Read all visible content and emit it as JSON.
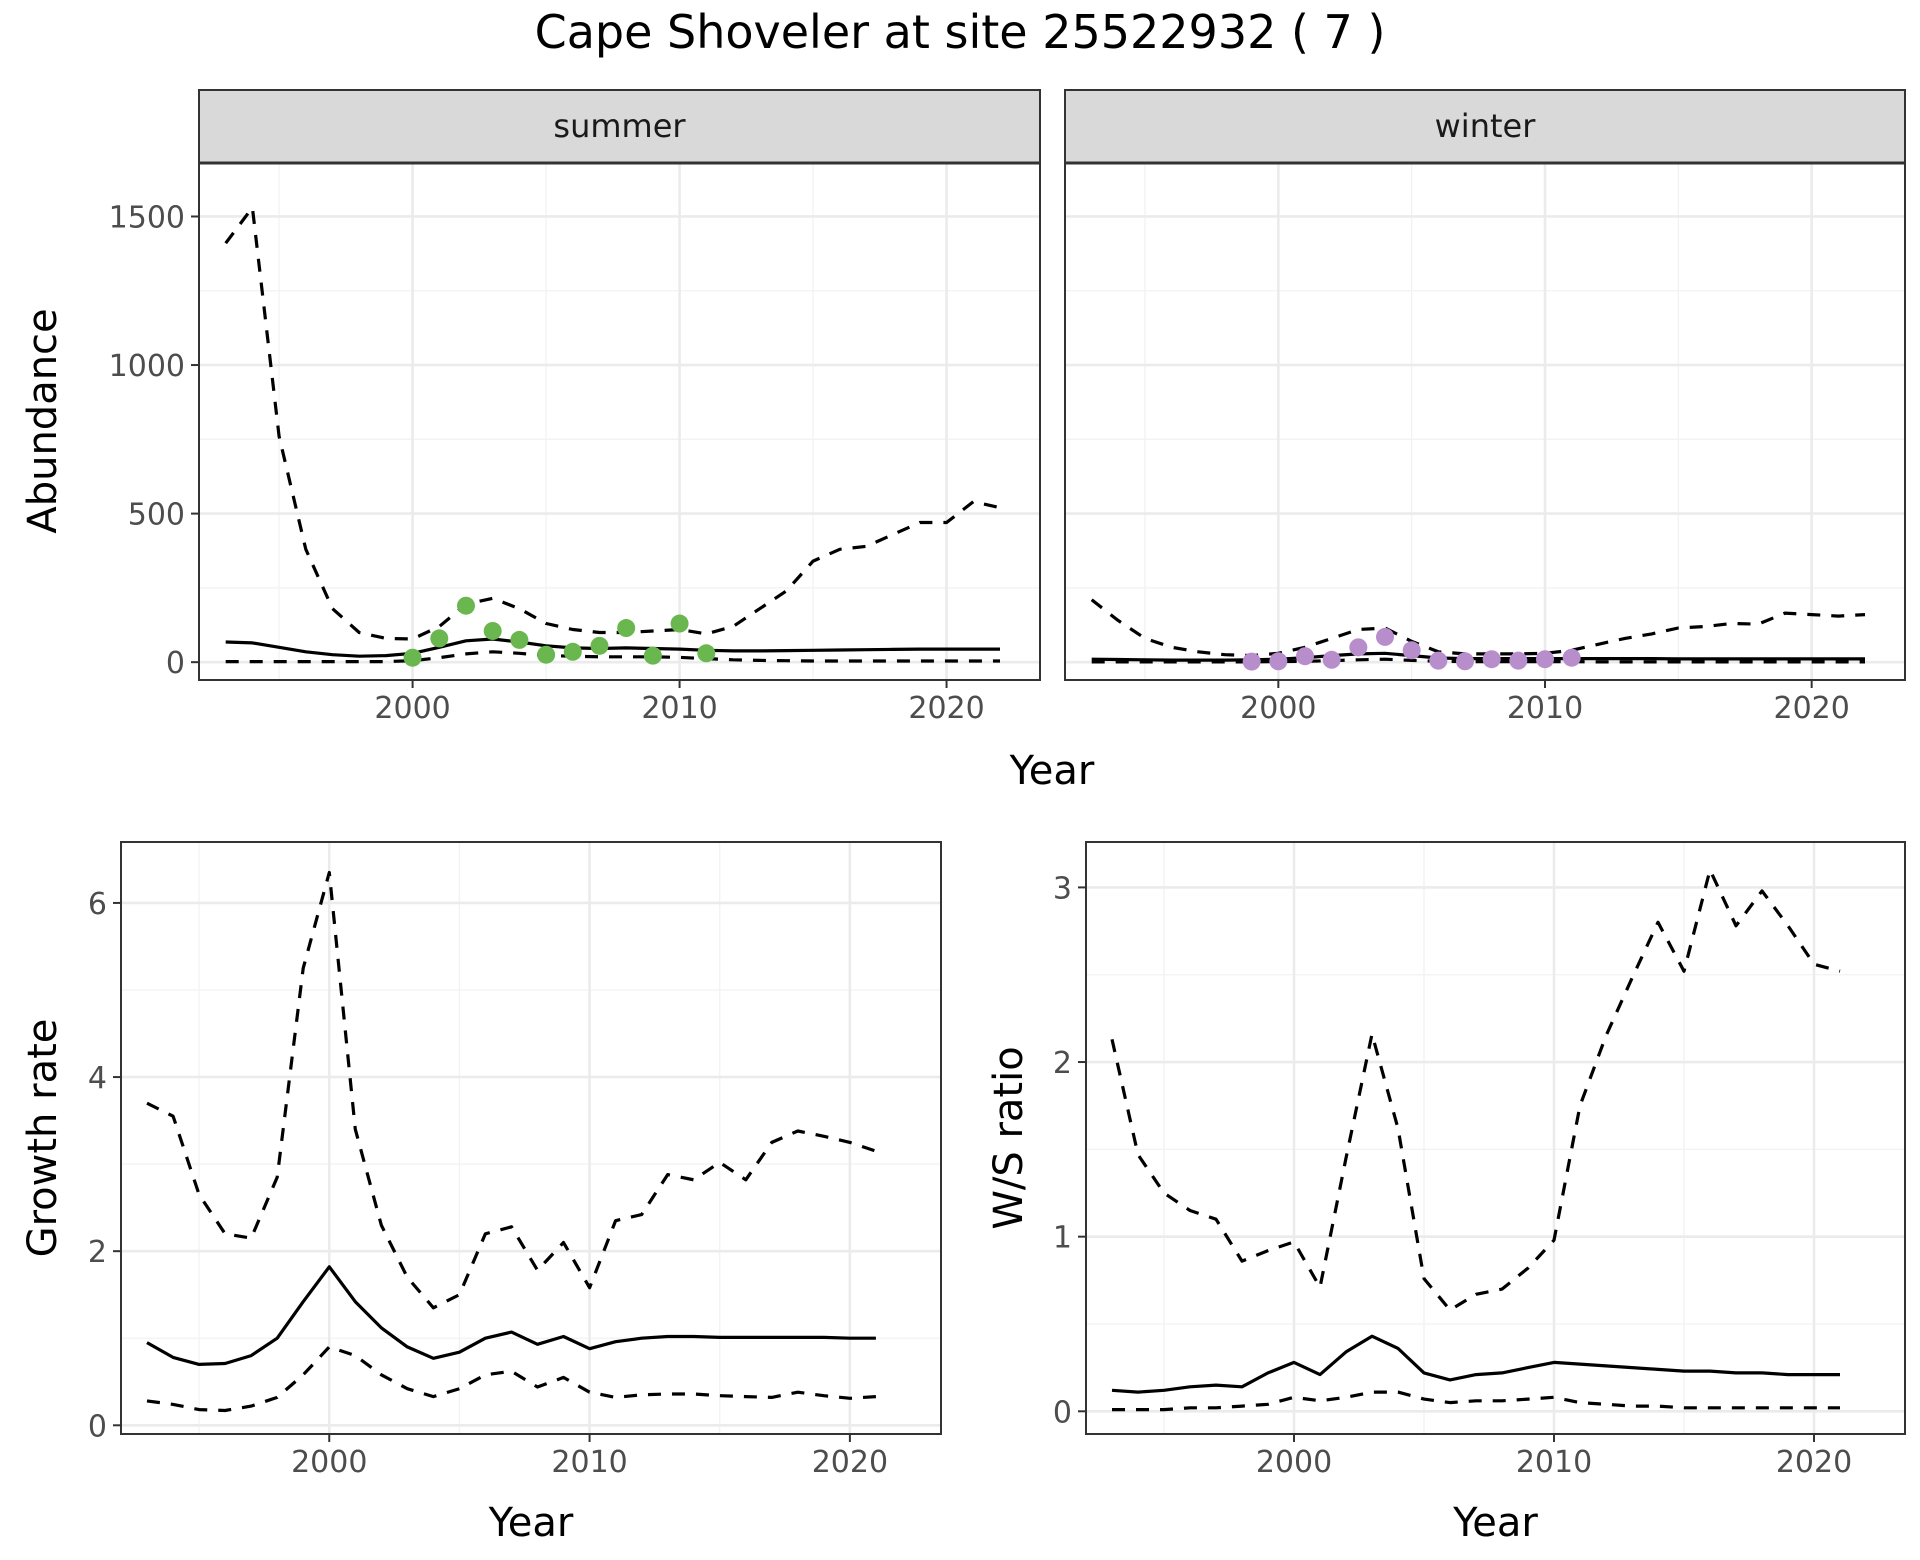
{
  "title": "Cape Shoveler at site 25522932 ( 7 )",
  "colors": {
    "summer_points": "#6ab750",
    "winter_points": "#b78dcb",
    "line": "#000000"
  },
  "chart_data": [
    {
      "id": "abundance",
      "type": "line",
      "facets": [
        "summer",
        "winter"
      ],
      "xlabel": "Year",
      "ylabel": "Abundance",
      "xlim": [
        1992,
        2023.5
      ],
      "ylim": [
        -60,
        1680
      ],
      "x_ticks": [
        2000,
        2010,
        2020
      ],
      "y_ticks": [
        0,
        500,
        1000,
        1500
      ],
      "grid": true,
      "panels": [
        {
          "facet": "summer",
          "point_color": "#6ab750",
          "x": [
            1993,
            1994,
            1995,
            1996,
            1997,
            1998,
            1999,
            2000,
            2001,
            2002,
            2003,
            2004,
            2005,
            2006,
            2007,
            2008,
            2009,
            2010,
            2011,
            2012,
            2013,
            2014,
            2015,
            2016,
            2017,
            2018,
            2019,
            2020,
            2021,
            2022
          ],
          "mean": [
            68,
            65,
            50,
            35,
            25,
            20,
            22,
            30,
            50,
            72,
            78,
            68,
            55,
            48,
            46,
            48,
            46,
            44,
            40,
            38,
            38,
            39,
            40,
            41,
            42,
            43,
            44,
            44,
            44,
            44
          ],
          "upper": [
            1410,
            1530,
            760,
            380,
            180,
            100,
            80,
            78,
            120,
            195,
            215,
            180,
            130,
            110,
            100,
            100,
            105,
            110,
            95,
            120,
            180,
            240,
            340,
            380,
            390,
            430,
            470,
            470,
            540,
            520
          ],
          "lower": [
            2,
            2,
            2,
            2,
            2,
            2,
            2,
            5,
            15,
            28,
            35,
            30,
            22,
            20,
            18,
            18,
            18,
            16,
            12,
            8,
            6,
            5,
            4,
            4,
            4,
            4,
            4,
            4,
            4,
            4
          ],
          "points": {
            "x": [
              2000,
              2001,
              2002,
              2003,
              2004,
              2005,
              2006,
              2007,
              2008,
              2009,
              2010,
              2011
            ],
            "y": [
              15,
              80,
              190,
              105,
              75,
              25,
              35,
              55,
              115,
              22,
              130,
              30
            ]
          }
        },
        {
          "facet": "winter",
          "point_color": "#b78dcb",
          "x": [
            1993,
            1994,
            1995,
            1996,
            1997,
            1998,
            1999,
            2000,
            2001,
            2002,
            2003,
            2004,
            2005,
            2006,
            2007,
            2008,
            2009,
            2010,
            2011,
            2012,
            2013,
            2014,
            2015,
            2016,
            2017,
            2018,
            2019,
            2020,
            2021,
            2022
          ],
          "mean": [
            10,
            9,
            8,
            7,
            7,
            7,
            8,
            10,
            15,
            22,
            28,
            30,
            22,
            14,
            12,
            12,
            12,
            12,
            12,
            12,
            12,
            12,
            11,
            11,
            11,
            11,
            11,
            11,
            11,
            11
          ],
          "upper": [
            210,
            140,
            80,
            50,
            35,
            25,
            22,
            30,
            50,
            80,
            110,
            115,
            70,
            35,
            28,
            28,
            28,
            30,
            40,
            60,
            80,
            95,
            115,
            120,
            130,
            128,
            165,
            160,
            155,
            160
          ],
          "lower": [
            1,
            1,
            1,
            1,
            1,
            1,
            1,
            2,
            3,
            5,
            8,
            10,
            6,
            3,
            2,
            2,
            2,
            2,
            2,
            1,
            1,
            1,
            1,
            1,
            1,
            1,
            1,
            1,
            1,
            1
          ],
          "points": {
            "x": [
              1999,
              2000,
              2001,
              2002,
              2003,
              2004,
              2005,
              2006,
              2007,
              2008,
              2009,
              2010,
              2011
            ],
            "y": [
              2,
              3,
              20,
              8,
              50,
              85,
              40,
              5,
              3,
              10,
              5,
              10,
              15
            ]
          }
        }
      ]
    },
    {
      "id": "growth",
      "type": "line",
      "xlabel": "Year",
      "ylabel": "Growth rate",
      "xlim": [
        1992,
        2023.5
      ],
      "ylim": [
        -0.1,
        6.7
      ],
      "x_ticks": [
        2000,
        2010,
        2020
      ],
      "y_ticks": [
        0,
        2,
        4,
        6
      ],
      "grid": true,
      "x": [
        1993,
        1994,
        1995,
        1996,
        1997,
        1998,
        1999,
        2000,
        2001,
        2002,
        2003,
        2004,
        2005,
        2006,
        2007,
        2008,
        2009,
        2010,
        2011,
        2012,
        2013,
        2014,
        2015,
        2016,
        2017,
        2018,
        2019,
        2020,
        2021
      ],
      "mean": [
        0.95,
        0.78,
        0.7,
        0.71,
        0.8,
        1.0,
        1.42,
        1.82,
        1.42,
        1.12,
        0.9,
        0.77,
        0.84,
        1.0,
        1.07,
        0.93,
        1.02,
        0.88,
        0.96,
        1.0,
        1.02,
        1.02,
        1.01,
        1.01,
        1.01,
        1.01,
        1.01,
        1.0,
        1.0
      ],
      "upper": [
        3.7,
        3.55,
        2.65,
        2.2,
        2.15,
        2.85,
        5.25,
        6.35,
        3.4,
        2.3,
        1.7,
        1.35,
        1.5,
        2.2,
        2.28,
        1.78,
        2.1,
        1.58,
        2.35,
        2.42,
        2.88,
        2.82,
        3.02,
        2.82,
        3.25,
        3.38,
        3.32,
        3.25,
        3.15
      ],
      "lower": [
        0.28,
        0.24,
        0.18,
        0.17,
        0.22,
        0.32,
        0.58,
        0.9,
        0.8,
        0.58,
        0.42,
        0.33,
        0.42,
        0.58,
        0.62,
        0.44,
        0.55,
        0.38,
        0.32,
        0.35,
        0.36,
        0.36,
        0.34,
        0.33,
        0.32,
        0.38,
        0.34,
        0.31,
        0.33
      ]
    },
    {
      "id": "ws_ratio",
      "type": "line",
      "xlabel": "Year",
      "ylabel": "W/S ratio",
      "xlim": [
        1992,
        2023.5
      ],
      "ylim": [
        -0.13,
        3.26
      ],
      "x_ticks": [
        2000,
        2010,
        2020
      ],
      "y_ticks": [
        0,
        1,
        2,
        3
      ],
      "grid": true,
      "x": [
        1993,
        1994,
        1995,
        1996,
        1997,
        1998,
        1999,
        2000,
        2001,
        2002,
        2003,
        2004,
        2005,
        2006,
        2007,
        2008,
        2009,
        2010,
        2011,
        2012,
        2013,
        2014,
        2015,
        2016,
        2017,
        2018,
        2019,
        2020,
        2021
      ],
      "mean": [
        0.12,
        0.11,
        0.12,
        0.14,
        0.15,
        0.14,
        0.22,
        0.28,
        0.21,
        0.34,
        0.43,
        0.36,
        0.22,
        0.18,
        0.21,
        0.22,
        0.25,
        0.28,
        0.27,
        0.26,
        0.25,
        0.24,
        0.23,
        0.23,
        0.22,
        0.22,
        0.21,
        0.21,
        0.21
      ],
      "upper": [
        2.13,
        1.47,
        1.25,
        1.15,
        1.1,
        0.86,
        0.92,
        0.97,
        0.71,
        1.45,
        2.16,
        1.62,
        0.76,
        0.58,
        0.67,
        0.7,
        0.82,
        0.98,
        1.75,
        2.15,
        2.48,
        2.8,
        2.52,
        3.1,
        2.78,
        2.98,
        2.78,
        2.56,
        2.52
      ],
      "lower": [
        0.01,
        0.01,
        0.01,
        0.02,
        0.02,
        0.03,
        0.04,
        0.08,
        0.06,
        0.08,
        0.11,
        0.11,
        0.07,
        0.05,
        0.06,
        0.06,
        0.07,
        0.08,
        0.05,
        0.04,
        0.03,
        0.03,
        0.02,
        0.02,
        0.02,
        0.02,
        0.02,
        0.02,
        0.02
      ]
    }
  ]
}
